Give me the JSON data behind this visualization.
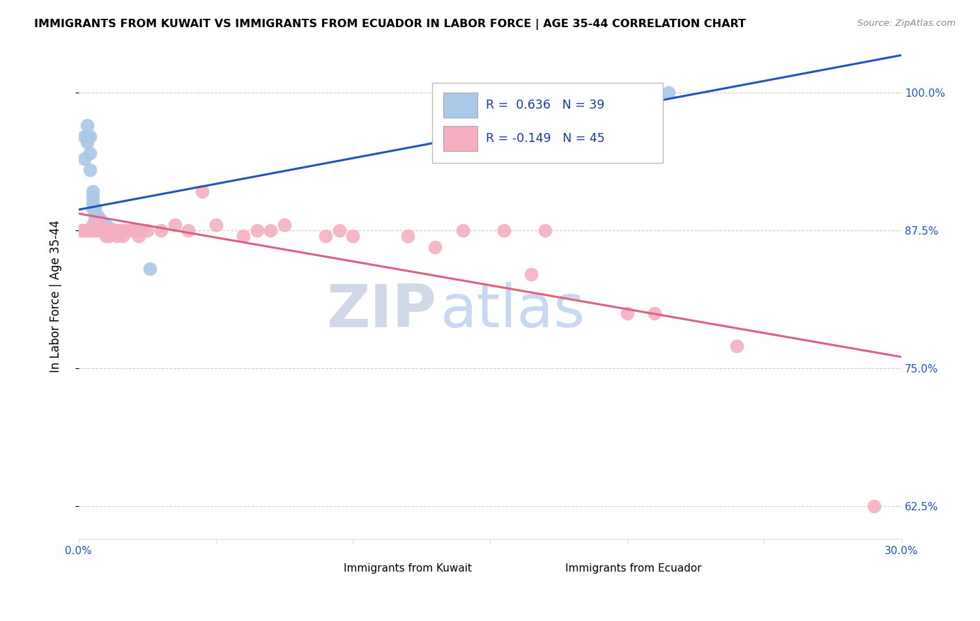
{
  "title": "IMMIGRANTS FROM KUWAIT VS IMMIGRANTS FROM ECUADOR IN LABOR FORCE | AGE 35-44 CORRELATION CHART",
  "source": "Source: ZipAtlas.com",
  "ylabel": "In Labor Force | Age 35-44",
  "xlim": [
    0.0,
    0.3
  ],
  "ylim": [
    0.595,
    1.035
  ],
  "yticks": [
    0.625,
    0.75,
    0.875,
    1.0
  ],
  "ytick_labels": [
    "62.5%",
    "75.0%",
    "87.5%",
    "100.0%"
  ],
  "xticks": [
    0.0,
    0.05,
    0.1,
    0.15,
    0.2,
    0.25,
    0.3
  ],
  "xtick_labels": [
    "0.0%",
    "",
    "",
    "",
    "",
    "",
    "30.0%"
  ],
  "kuwait_color": "#aac8e8",
  "ecuador_color": "#f5afc0",
  "kuwait_line_color": "#2255bb",
  "ecuador_line_color": "#e06080",
  "R_kuwait": 0.636,
  "N_kuwait": 39,
  "R_ecuador": -0.149,
  "N_ecuador": 45,
  "watermark_zip_color": "#d0d8e8",
  "watermark_atlas_color": "#c8d8f0",
  "kuwait_scatter_x": [
    0.001,
    0.002,
    0.002,
    0.003,
    0.003,
    0.003,
    0.004,
    0.004,
    0.004,
    0.005,
    0.005,
    0.005,
    0.005,
    0.006,
    0.006,
    0.006,
    0.006,
    0.007,
    0.007,
    0.007,
    0.008,
    0.008,
    0.008,
    0.009,
    0.009,
    0.01,
    0.01,
    0.01,
    0.011,
    0.012,
    0.013,
    0.014,
    0.016,
    0.018,
    0.02,
    0.023,
    0.026,
    0.145,
    0.215
  ],
  "kuwait_scatter_y": [
    0.875,
    0.96,
    0.94,
    0.97,
    0.96,
    0.955,
    0.96,
    0.945,
    0.93,
    0.91,
    0.905,
    0.9,
    0.895,
    0.895,
    0.89,
    0.885,
    0.88,
    0.888,
    0.882,
    0.878,
    0.885,
    0.882,
    0.878,
    0.88,
    0.877,
    0.88,
    0.878,
    0.875,
    0.877,
    0.876,
    0.875,
    0.875,
    0.875,
    0.875,
    0.875,
    0.875,
    0.84,
    0.99,
    1.0
  ],
  "ecuador_scatter_x": [
    0.001,
    0.002,
    0.003,
    0.004,
    0.005,
    0.005,
    0.006,
    0.007,
    0.008,
    0.009,
    0.01,
    0.01,
    0.011,
    0.012,
    0.013,
    0.014,
    0.015,
    0.016,
    0.017,
    0.018,
    0.02,
    0.022,
    0.025,
    0.03,
    0.035,
    0.04,
    0.045,
    0.05,
    0.06,
    0.065,
    0.07,
    0.075,
    0.09,
    0.095,
    0.1,
    0.12,
    0.13,
    0.14,
    0.155,
    0.165,
    0.17,
    0.2,
    0.21,
    0.24,
    0.29
  ],
  "ecuador_scatter_y": [
    0.875,
    0.875,
    0.875,
    0.875,
    0.88,
    0.875,
    0.875,
    0.875,
    0.88,
    0.875,
    0.875,
    0.87,
    0.87,
    0.875,
    0.875,
    0.87,
    0.875,
    0.87,
    0.875,
    0.875,
    0.875,
    0.87,
    0.875,
    0.875,
    0.88,
    0.875,
    0.91,
    0.88,
    0.87,
    0.875,
    0.875,
    0.88,
    0.87,
    0.875,
    0.87,
    0.87,
    0.86,
    0.875,
    0.875,
    0.835,
    0.875,
    0.8,
    0.8,
    0.77,
    0.625
  ]
}
